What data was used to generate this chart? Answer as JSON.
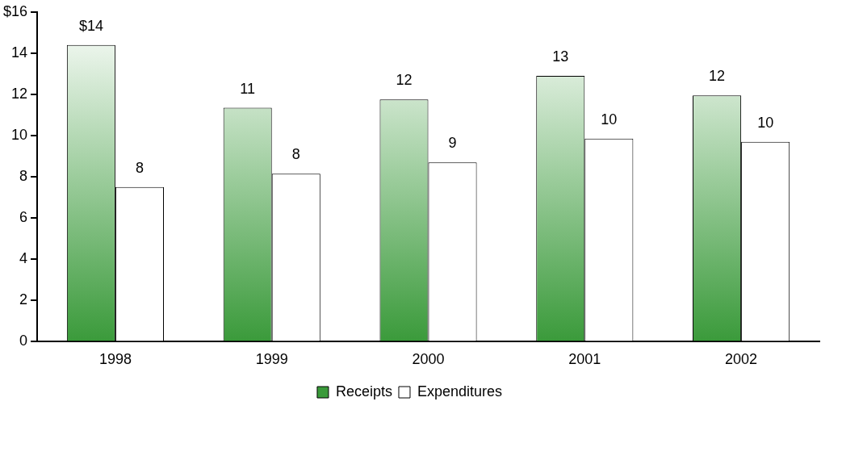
{
  "chart_data": {
    "type": "bar",
    "categories": [
      "1998",
      "1999",
      "2000",
      "2001",
      "2002"
    ],
    "series": [
      {
        "name": "Receipts",
        "color": "#3a9a3a",
        "values": [
          14.4,
          11.35,
          11.75,
          12.9,
          11.95
        ],
        "value_labels": [
          "$14",
          "11",
          "12",
          "13",
          "12"
        ]
      },
      {
        "name": "Expenditures",
        "color": "#ffffff",
        "values": [
          7.5,
          8.15,
          8.7,
          9.85,
          9.7
        ],
        "value_labels": [
          "8",
          "8",
          "9",
          "10",
          "10"
        ]
      }
    ],
    "ylim": [
      0,
      16
    ],
    "yticks": [
      0,
      2,
      4,
      6,
      8,
      10,
      12,
      14,
      {
        "value": 16,
        "label": "$16"
      }
    ],
    "grid": false,
    "legend": "bottom"
  }
}
